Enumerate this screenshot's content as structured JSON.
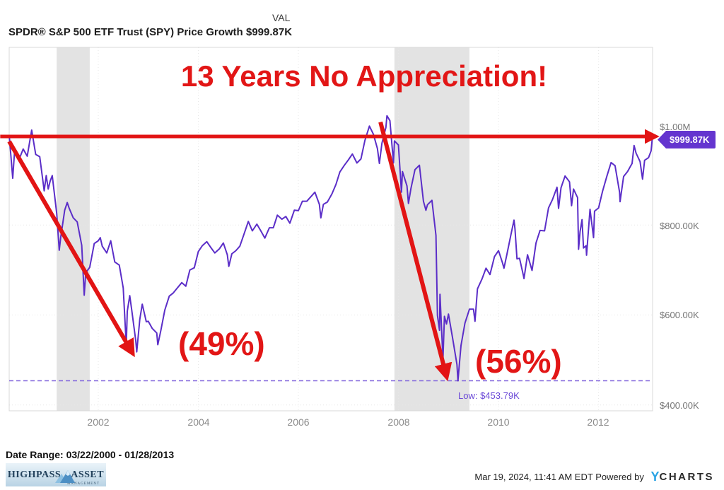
{
  "header": {
    "column_label": "VAL",
    "title": "SPDR® S&P 500 ETF Trust (SPY) Price Growth",
    "value": "$999.87K"
  },
  "chart_data": {
    "type": "line",
    "title": "SPDR® S&P 500 ETF Trust (SPY) Price Growth",
    "series_name": "SPY Price Growth",
    "unit": "thousand dollars",
    "xlim": [
      2000.22,
      2013.08
    ],
    "ylim": [
      387,
      1195
    ],
    "x_tick_labels": [
      "2002",
      "2004",
      "2006",
      "2008",
      "2010",
      "2012"
    ],
    "x_tick_values": [
      2002,
      2004,
      2006,
      2008,
      2010,
      2012
    ],
    "y_tick_labels": [
      "$1.00M",
      "$800.00K",
      "$600.00K",
      "$400.00K"
    ],
    "y_tick_values": [
      1000,
      800,
      600,
      400
    ],
    "line_color": "#5b2ec8",
    "recession_band_color": "#e3e3e3",
    "recession_bands": [
      [
        2001.17,
        2001.83
      ],
      [
        2007.92,
        2009.42
      ]
    ],
    "low_marker": {
      "label": "Low: $453.79K",
      "value": 453.79
    },
    "end_value_badge": "$999.87K",
    "badge_color": "#6435cf",
    "points": [
      [
        2000.22,
        1000
      ],
      [
        2000.29,
        904
      ],
      [
        2000.33,
        968
      ],
      [
        2000.42,
        947
      ],
      [
        2000.5,
        969
      ],
      [
        2000.58,
        953
      ],
      [
        2000.67,
        1011
      ],
      [
        2000.7,
        990
      ],
      [
        2000.75,
        957
      ],
      [
        2000.83,
        952
      ],
      [
        2000.92,
        876
      ],
      [
        2000.96,
        910
      ],
      [
        2001.0,
        880
      ],
      [
        2001.04,
        898
      ],
      [
        2001.08,
        910
      ],
      [
        2001.17,
        826
      ],
      [
        2001.22,
        744
      ],
      [
        2001.25,
        773
      ],
      [
        2001.33,
        833
      ],
      [
        2001.38,
        850
      ],
      [
        2001.42,
        837
      ],
      [
        2001.5,
        816
      ],
      [
        2001.58,
        807
      ],
      [
        2001.67,
        755
      ],
      [
        2001.72,
        644
      ],
      [
        2001.75,
        694
      ],
      [
        2001.83,
        706
      ],
      [
        2001.92,
        759
      ],
      [
        2002.0,
        765
      ],
      [
        2002.04,
        772
      ],
      [
        2002.08,
        753
      ],
      [
        2002.17,
        738
      ],
      [
        2002.25,
        765
      ],
      [
        2002.33,
        718
      ],
      [
        2002.42,
        711
      ],
      [
        2002.5,
        660
      ],
      [
        2002.56,
        532
      ],
      [
        2002.58,
        608
      ],
      [
        2002.63,
        643
      ],
      [
        2002.67,
        610
      ],
      [
        2002.75,
        543
      ],
      [
        2002.77,
        518
      ],
      [
        2002.83,
        590
      ],
      [
        2002.88,
        624
      ],
      [
        2002.96,
        585
      ],
      [
        2003.0,
        586
      ],
      [
        2003.08,
        570
      ],
      [
        2003.17,
        560
      ],
      [
        2003.19,
        534
      ],
      [
        2003.25,
        565
      ],
      [
        2003.33,
        611
      ],
      [
        2003.42,
        642
      ],
      [
        2003.5,
        649
      ],
      [
        2003.58,
        660
      ],
      [
        2003.67,
        672
      ],
      [
        2003.75,
        664
      ],
      [
        2003.83,
        700
      ],
      [
        2003.92,
        705
      ],
      [
        2004.0,
        741
      ],
      [
        2004.08,
        754
      ],
      [
        2004.17,
        763
      ],
      [
        2004.25,
        750
      ],
      [
        2004.33,
        738
      ],
      [
        2004.42,
        747
      ],
      [
        2004.5,
        760
      ],
      [
        2004.58,
        734
      ],
      [
        2004.61,
        708
      ],
      [
        2004.67,
        736
      ],
      [
        2004.75,
        743
      ],
      [
        2004.83,
        753
      ],
      [
        2004.92,
        782
      ],
      [
        2005.0,
        808
      ],
      [
        2005.08,
        787
      ],
      [
        2005.17,
        802
      ],
      [
        2005.25,
        787
      ],
      [
        2005.33,
        771
      ],
      [
        2005.42,
        794
      ],
      [
        2005.5,
        794
      ],
      [
        2005.58,
        822
      ],
      [
        2005.67,
        813
      ],
      [
        2005.75,
        819
      ],
      [
        2005.83,
        804
      ],
      [
        2005.92,
        833
      ],
      [
        2006.0,
        832
      ],
      [
        2006.08,
        853
      ],
      [
        2006.17,
        853
      ],
      [
        2006.25,
        863
      ],
      [
        2006.33,
        873
      ],
      [
        2006.42,
        846
      ],
      [
        2006.45,
        816
      ],
      [
        2006.5,
        846
      ],
      [
        2006.58,
        851
      ],
      [
        2006.67,
        869
      ],
      [
        2006.75,
        890
      ],
      [
        2006.83,
        918
      ],
      [
        2006.92,
        933
      ],
      [
        2007.0,
        945
      ],
      [
        2007.08,
        958
      ],
      [
        2007.17,
        938
      ],
      [
        2007.25,
        947
      ],
      [
        2007.33,
        988
      ],
      [
        2007.42,
        1020
      ],
      [
        2007.5,
        1002
      ],
      [
        2007.58,
        970
      ],
      [
        2007.62,
        937
      ],
      [
        2007.67,
        982
      ],
      [
        2007.75,
        1017
      ],
      [
        2007.77,
        1043
      ],
      [
        2007.83,
        1032
      ],
      [
        2007.9,
        938
      ],
      [
        2007.92,
        987
      ],
      [
        2008.0,
        978
      ],
      [
        2008.06,
        873
      ],
      [
        2008.08,
        919
      ],
      [
        2008.17,
        887
      ],
      [
        2008.2,
        848
      ],
      [
        2008.25,
        881
      ],
      [
        2008.33,
        923
      ],
      [
        2008.42,
        933
      ],
      [
        2008.5,
        853
      ],
      [
        2008.55,
        833
      ],
      [
        2008.58,
        845
      ],
      [
        2008.67,
        855
      ],
      [
        2008.75,
        777
      ],
      [
        2008.78,
        599
      ],
      [
        2008.82,
        566
      ],
      [
        2008.83,
        646
      ],
      [
        2008.89,
        501
      ],
      [
        2008.92,
        597
      ],
      [
        2008.96,
        580
      ],
      [
        2009.0,
        602
      ],
      [
        2009.08,
        550
      ],
      [
        2009.17,
        490
      ],
      [
        2009.19,
        453.79
      ],
      [
        2009.25,
        532
      ],
      [
        2009.33,
        582
      ],
      [
        2009.42,
        613
      ],
      [
        2009.5,
        613
      ],
      [
        2009.53,
        586
      ],
      [
        2009.58,
        658
      ],
      [
        2009.67,
        680
      ],
      [
        2009.75,
        704
      ],
      [
        2009.83,
        690
      ],
      [
        2009.92,
        730
      ],
      [
        2010.0,
        743
      ],
      [
        2010.08,
        716
      ],
      [
        2010.11,
        704
      ],
      [
        2010.17,
        736
      ],
      [
        2010.25,
        779
      ],
      [
        2010.31,
        811
      ],
      [
        2010.33,
        791
      ],
      [
        2010.37,
        725
      ],
      [
        2010.42,
        726
      ],
      [
        2010.5,
        687
      ],
      [
        2010.51,
        681
      ],
      [
        2010.58,
        734
      ],
      [
        2010.67,
        699
      ],
      [
        2010.75,
        760
      ],
      [
        2010.83,
        788
      ],
      [
        2010.92,
        787
      ],
      [
        2011.0,
        838
      ],
      [
        2011.08,
        857
      ],
      [
        2011.17,
        884
      ],
      [
        2011.2,
        837
      ],
      [
        2011.25,
        883
      ],
      [
        2011.33,
        909
      ],
      [
        2011.42,
        896
      ],
      [
        2011.46,
        843
      ],
      [
        2011.5,
        880
      ],
      [
        2011.58,
        861
      ],
      [
        2011.6,
        746
      ],
      [
        2011.63,
        785
      ],
      [
        2011.67,
        812
      ],
      [
        2011.7,
        749
      ],
      [
        2011.75,
        754
      ],
      [
        2011.76,
        733
      ],
      [
        2011.83,
        835
      ],
      [
        2011.9,
        772
      ],
      [
        2011.92,
        831
      ],
      [
        2012.0,
        838
      ],
      [
        2012.08,
        875
      ],
      [
        2012.17,
        910
      ],
      [
        2012.25,
        939
      ],
      [
        2012.33,
        932
      ],
      [
        2012.42,
        873
      ],
      [
        2012.43,
        852
      ],
      [
        2012.5,
        908
      ],
      [
        2012.58,
        919
      ],
      [
        2012.67,
        937
      ],
      [
        2012.71,
        977
      ],
      [
        2012.75,
        960
      ],
      [
        2012.83,
        941
      ],
      [
        2012.88,
        902
      ],
      [
        2012.92,
        944
      ],
      [
        2013.0,
        950
      ],
      [
        2013.05,
        965
      ],
      [
        2013.08,
        999.87
      ]
    ]
  },
  "annotations": {
    "headline": "13 Years No Appreciation!",
    "drawdown_1": "(49%)",
    "drawdown_2": "(56%)",
    "color": "#e21414",
    "arrows": [
      {
        "name": "flat-line",
        "from": {
          "t": 2000.04,
          "v": 997
        },
        "to": {
          "t": 2013.1,
          "v": 997
        },
        "width": 5
      },
      {
        "name": "crash-2000-2002",
        "from": {
          "t": 2000.22,
          "v": 986
        },
        "to": {
          "t": 2002.66,
          "v": 520
        },
        "width": 6
      },
      {
        "name": "crash-2007-2009",
        "from": {
          "t": 2007.64,
          "v": 1029
        },
        "to": {
          "t": 2008.95,
          "v": 468
        },
        "width": 6
      }
    ]
  },
  "footer": {
    "date_range": "Date Range: 03/22/2000 - 01/28/2013",
    "logo_line1": "HIGHPASS",
    "logo_line2": "ASSET",
    "logo_line3": "MANAGEMENT",
    "timestamp": "Mar 19, 2024, 11:41 AM EDT",
    "powered_by": "Powered by",
    "brand_y": "Y",
    "brand_rest": "CHARTS"
  }
}
